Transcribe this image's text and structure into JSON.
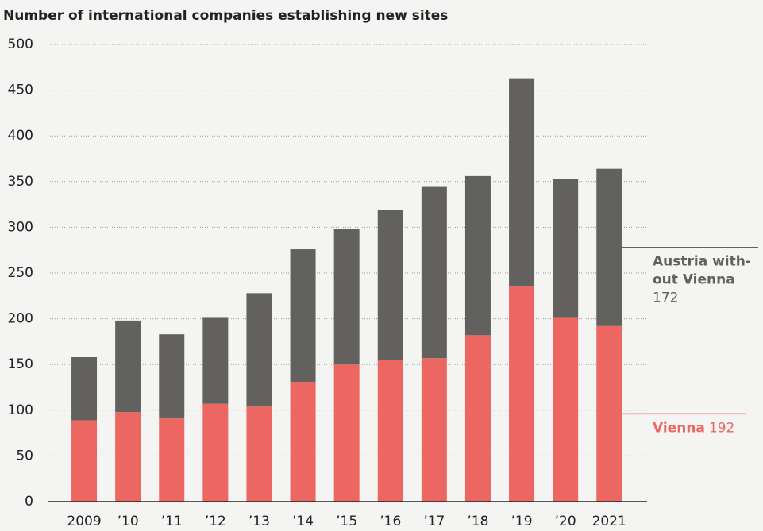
{
  "chart_data": {
    "type": "stacked_bar",
    "title": "Number of international companies establishing new sites",
    "categories": [
      "2009",
      "’10",
      "’11",
      "’12",
      "’13",
      "’14",
      "’15",
      "’16",
      "’17",
      "’18",
      "’19",
      "’20",
      "2021"
    ],
    "series": [
      {
        "name": "Vienna",
        "color": "#ec6762",
        "values": [
          89,
          98,
          91,
          107,
          104,
          131,
          150,
          155,
          157,
          182,
          236,
          201,
          192
        ]
      },
      {
        "name": "Austria with-\nout Vienna",
        "color": "#63615e",
        "values": [
          69,
          100,
          92,
          94,
          124,
          145,
          148,
          164,
          188,
          174,
          227,
          152,
          172
        ]
      }
    ],
    "ylim": [
      0,
      500
    ],
    "yticks": [
      0,
      50,
      100,
      150,
      200,
      250,
      300,
      350,
      400,
      450,
      500
    ],
    "grid": true
  }
}
